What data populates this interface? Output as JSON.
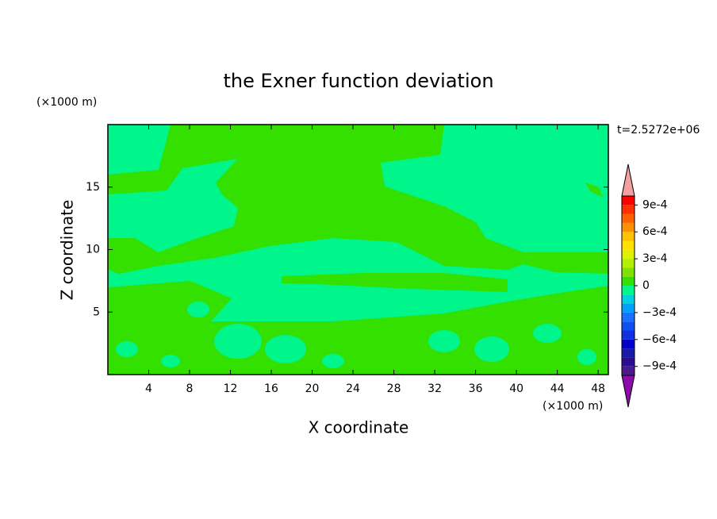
{
  "chart_data": {
    "type": "contour",
    "title": "the Exner function deviation",
    "x_label": "X coordinate",
    "y_label": "Z coordinate",
    "x_unit": "(×1000 m)",
    "y_unit": "(×1000 m)",
    "time_label": "t=2.5272e+06",
    "xlim": [
      0,
      49
    ],
    "ylim": [
      0,
      20
    ],
    "xticks": [
      4,
      8,
      12,
      16,
      20,
      24,
      28,
      32,
      36,
      40,
      44,
      48
    ],
    "yticks": [
      5,
      10,
      15
    ],
    "colorbar": {
      "levels": [
        -0.001,
        -0.0009,
        -0.0008,
        -0.0007,
        -0.0006,
        -0.0005,
        -0.0004,
        -0.0003,
        -0.0002,
        -0.0001,
        0,
        0.0001,
        0.0002,
        0.0003,
        0.0004,
        0.0005,
        0.0006,
        0.0007,
        0.0008,
        0.0009,
        0.001
      ],
      "colors": [
        "#4b1a8c",
        "#2a0e8f",
        "#1a1aa8",
        "#0000c8",
        "#1030e0",
        "#1050f0",
        "#1a70ff",
        "#00a0ff",
        "#00d0e0",
        "#00f58a",
        "#33e000",
        "#80e000",
        "#b0f000",
        "#e0f000",
        "#ffe000",
        "#ffc000",
        "#ff9000",
        "#ff6000",
        "#ff3000",
        "#ff0000"
      ],
      "under_color": "#8b0ca8",
      "over_color": "#f4a0a0",
      "ticks": [
        {
          "value": 0.0009,
          "label": "9e-4"
        },
        {
          "value": 0.0006,
          "label": "6e-4"
        },
        {
          "value": 0.0003,
          "label": "3e-4"
        },
        0,
        {
          "value": -0.0003,
          "label": "−3e-4"
        },
        {
          "value": -0.0006,
          "label": "−6e-4"
        },
        {
          "value": -0.0009,
          "label": "−9e-4"
        }
      ]
    }
  }
}
